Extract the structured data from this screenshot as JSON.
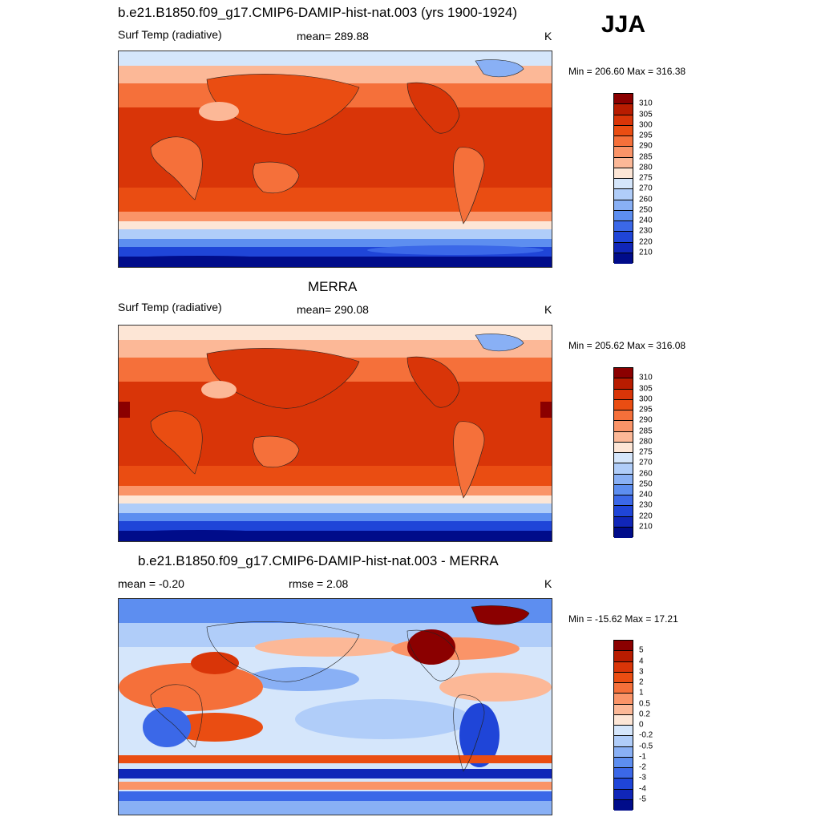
{
  "season": "JJA",
  "panels": [
    {
      "title": "b.e21.B1850.f09_g17.CMIP6-DAMIP-hist-nat.003 (yrs 1900-1924)",
      "left_label": "Surf Temp (radiative)",
      "center_label": "mean= 289.88",
      "units": "K",
      "minmax": "Min = 206.60 Max = 316.38",
      "colorbar": {
        "labels": [
          "310",
          "305",
          "300",
          "295",
          "290",
          "285",
          "280",
          "275",
          "270",
          "260",
          "250",
          "240",
          "230",
          "220",
          "210"
        ],
        "colors": [
          "#8b0000",
          "#b81c00",
          "#d93508",
          "#ea4d12",
          "#f5703a",
          "#fa9468",
          "#fcb897",
          "#fde6d6",
          "#d5e6fb",
          "#b0cdf9",
          "#89b0f5",
          "#5d8ef0",
          "#3b68e8",
          "#1f45d8",
          "#1026b8",
          "#000c8a"
        ]
      }
    },
    {
      "title": "MERRA",
      "left_label": "Surf Temp (radiative)",
      "center_label": "mean= 290.08",
      "units": "K",
      "minmax": "Min = 205.62 Max = 316.08",
      "colorbar": {
        "labels": [
          "310",
          "305",
          "300",
          "295",
          "290",
          "285",
          "280",
          "275",
          "270",
          "260",
          "250",
          "240",
          "230",
          "220",
          "210"
        ],
        "colors": [
          "#8b0000",
          "#b81c00",
          "#d93508",
          "#ea4d12",
          "#f5703a",
          "#fa9468",
          "#fcb897",
          "#fde6d6",
          "#d5e6fb",
          "#b0cdf9",
          "#89b0f5",
          "#5d8ef0",
          "#3b68e8",
          "#1f45d8",
          "#1026b8",
          "#000c8a"
        ]
      }
    },
    {
      "title": "b.e21.B1850.f09_g17.CMIP6-DAMIP-hist-nat.003 - MERRA",
      "left_label": "mean =  -0.20",
      "center_label": "rmse =   2.08",
      "units": "K",
      "minmax": "Min = -15.62 Max =  17.21",
      "colorbar": {
        "labels": [
          "5",
          "4",
          "3",
          "2",
          "1",
          "0.5",
          "0.2",
          "0",
          "-0.2",
          "-0.5",
          "-1",
          "-2",
          "-3",
          "-4",
          "-5"
        ],
        "colors": [
          "#8b0000",
          "#b81c00",
          "#d93508",
          "#ea4d12",
          "#f5703a",
          "#fa9468",
          "#fcb897",
          "#fde6d6",
          "#d5e6fb",
          "#b0cdf9",
          "#89b0f5",
          "#5d8ef0",
          "#3b68e8",
          "#1f45d8",
          "#1026b8",
          "#000c8a"
        ]
      }
    }
  ]
}
